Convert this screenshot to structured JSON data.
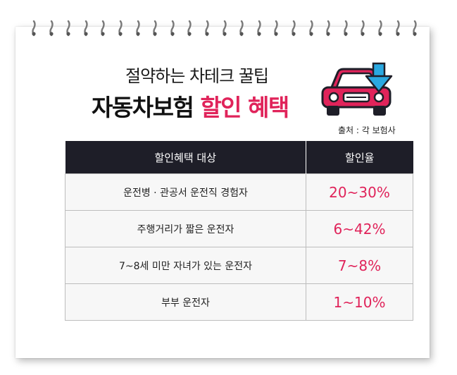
{
  "header": {
    "subtitle": "절약하는 차테크 꿀팁",
    "title_main": "자동차보험",
    "title_highlight": "할인 혜택"
  },
  "source": "출처 : 각 보험사",
  "table": {
    "headers": [
      "할인혜택 대상",
      "할인율"
    ],
    "rows": [
      {
        "target": "운전병 · 관공서 운전직 경험자",
        "rate": "20~30%"
      },
      {
        "target": "주행거리가 짧은 운전자",
        "rate": "6~42%"
      },
      {
        "target": "7~8세 미만 자녀가 있는 운전자",
        "rate": "7~8%"
      },
      {
        "target": "부부 운전자",
        "rate": "1~10%"
      }
    ]
  },
  "colors": {
    "accent": "#e0235a",
    "header_bg": "#1e1e28",
    "arrow": "#2aa8e0"
  },
  "icons": [
    "notebook-ring-icon",
    "car-icon",
    "down-arrow-icon"
  ]
}
